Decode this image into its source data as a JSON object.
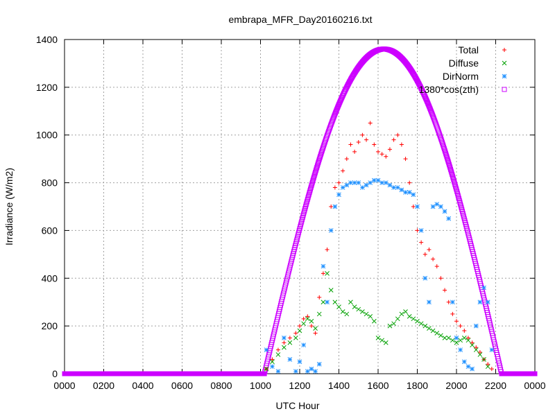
{
  "chart_data": {
    "type": "scatter",
    "title": "embrapa_MFR_Day20160216.txt",
    "xlabel": "UTC Hour",
    "ylabel": "Irradiance (W/m2)",
    "xlim": [
      0,
      24
    ],
    "ylim": [
      0,
      1400
    ],
    "x_ticks": [
      "0000",
      "0200",
      "0400",
      "0600",
      "0800",
      "1000",
      "1200",
      "1400",
      "1600",
      "1800",
      "2000",
      "2200",
      "0000"
    ],
    "y_ticks": [
      "0",
      "200",
      "400",
      "600",
      "800",
      "1000",
      "1200",
      "1400"
    ],
    "grid": true,
    "legend_position": "top-right",
    "series": [
      {
        "name": "Total",
        "marker": "plus",
        "color": "#ff0000",
        "x": [
          10.3,
          10.6,
          10.9,
          11.2,
          11.5,
          11.8,
          12.0,
          12.2,
          12.4,
          12.6,
          12.8,
          13.0,
          13.2,
          13.4,
          13.6,
          13.8,
          14.0,
          14.2,
          14.4,
          14.6,
          14.8,
          15.0,
          15.2,
          15.4,
          15.6,
          15.8,
          16.0,
          16.2,
          16.4,
          16.6,
          16.8,
          17.0,
          17.2,
          17.4,
          17.6,
          17.8,
          18.0,
          18.2,
          18.4,
          18.6,
          18.8,
          19.0,
          19.2,
          19.4,
          19.6,
          19.8,
          20.0,
          20.2,
          20.4,
          20.6,
          20.8,
          21.0,
          21.2,
          21.4,
          21.6,
          21.8
        ],
        "y": [
          20,
          60,
          100,
          130,
          150,
          170,
          200,
          230,
          240,
          200,
          170,
          320,
          420,
          520,
          700,
          780,
          800,
          850,
          900,
          960,
          930,
          970,
          1000,
          980,
          1050,
          960,
          930,
          920,
          910,
          940,
          980,
          1000,
          960,
          900,
          800,
          700,
          600,
          550,
          500,
          520,
          480,
          450,
          400,
          350,
          300,
          250,
          220,
          200,
          180,
          150,
          130,
          110,
          90,
          60,
          40,
          20
        ]
      },
      {
        "name": "Diffuse",
        "marker": "cross",
        "color": "#00a000",
        "x": [
          10.3,
          10.6,
          10.9,
          11.2,
          11.5,
          11.8,
          12.0,
          12.2,
          12.4,
          12.6,
          12.8,
          13.0,
          13.2,
          13.4,
          13.6,
          13.8,
          14.0,
          14.2,
          14.4,
          14.6,
          14.8,
          15.0,
          15.2,
          15.4,
          15.6,
          15.8,
          16.0,
          16.2,
          16.4,
          16.6,
          16.8,
          17.0,
          17.2,
          17.4,
          17.6,
          17.8,
          18.0,
          18.2,
          18.4,
          18.6,
          18.8,
          19.0,
          19.2,
          19.4,
          19.6,
          19.8,
          20.0,
          20.2,
          20.4,
          20.6,
          20.8,
          21.0,
          21.2,
          21.4,
          21.6
        ],
        "y": [
          20,
          50,
          80,
          110,
          130,
          150,
          180,
          210,
          230,
          220,
          190,
          250,
          300,
          420,
          350,
          300,
          280,
          260,
          250,
          300,
          280,
          270,
          260,
          250,
          240,
          220,
          150,
          140,
          130,
          200,
          210,
          230,
          250,
          260,
          240,
          230,
          220,
          210,
          200,
          190,
          180,
          170,
          160,
          150,
          150,
          140,
          130,
          140,
          150,
          140,
          120,
          100,
          80,
          60,
          30
        ]
      },
      {
        "name": "DirNorm",
        "marker": "star",
        "color": "#1e90ff",
        "x": [
          10.3,
          10.6,
          10.9,
          11.2,
          11.5,
          11.8,
          12.0,
          12.2,
          12.4,
          12.6,
          12.8,
          13.0,
          13.2,
          13.4,
          13.6,
          13.8,
          14.0,
          14.2,
          14.4,
          14.6,
          14.8,
          15.0,
          15.2,
          15.4,
          15.6,
          15.8,
          16.0,
          16.2,
          16.4,
          16.6,
          16.8,
          17.0,
          17.2,
          17.4,
          17.6,
          17.8,
          18.0,
          18.2,
          18.4,
          18.6,
          18.8,
          19.0,
          19.2,
          19.4,
          19.6,
          19.8,
          20.0,
          20.2,
          20.4,
          20.6,
          20.8,
          21.0,
          21.2,
          21.4,
          21.6,
          21.8
        ],
        "y": [
          100,
          30,
          10,
          150,
          60,
          10,
          50,
          120,
          10,
          20,
          10,
          40,
          450,
          300,
          600,
          700,
          750,
          780,
          790,
          800,
          800,
          800,
          780,
          790,
          800,
          810,
          810,
          800,
          800,
          790,
          780,
          780,
          770,
          760,
          760,
          750,
          700,
          600,
          400,
          300,
          700,
          710,
          700,
          680,
          650,
          300,
          150,
          100,
          50,
          30,
          20,
          200,
          300,
          360,
          300,
          100
        ]
      },
      {
        "name": "1380*cos(zth)",
        "marker": "square",
        "color": "#cc00ff",
        "curve": {
          "rise_hour": 10.2,
          "set_hour": 22.3,
          "peak": 1360,
          "peak_hour": 16.3
        }
      }
    ]
  }
}
